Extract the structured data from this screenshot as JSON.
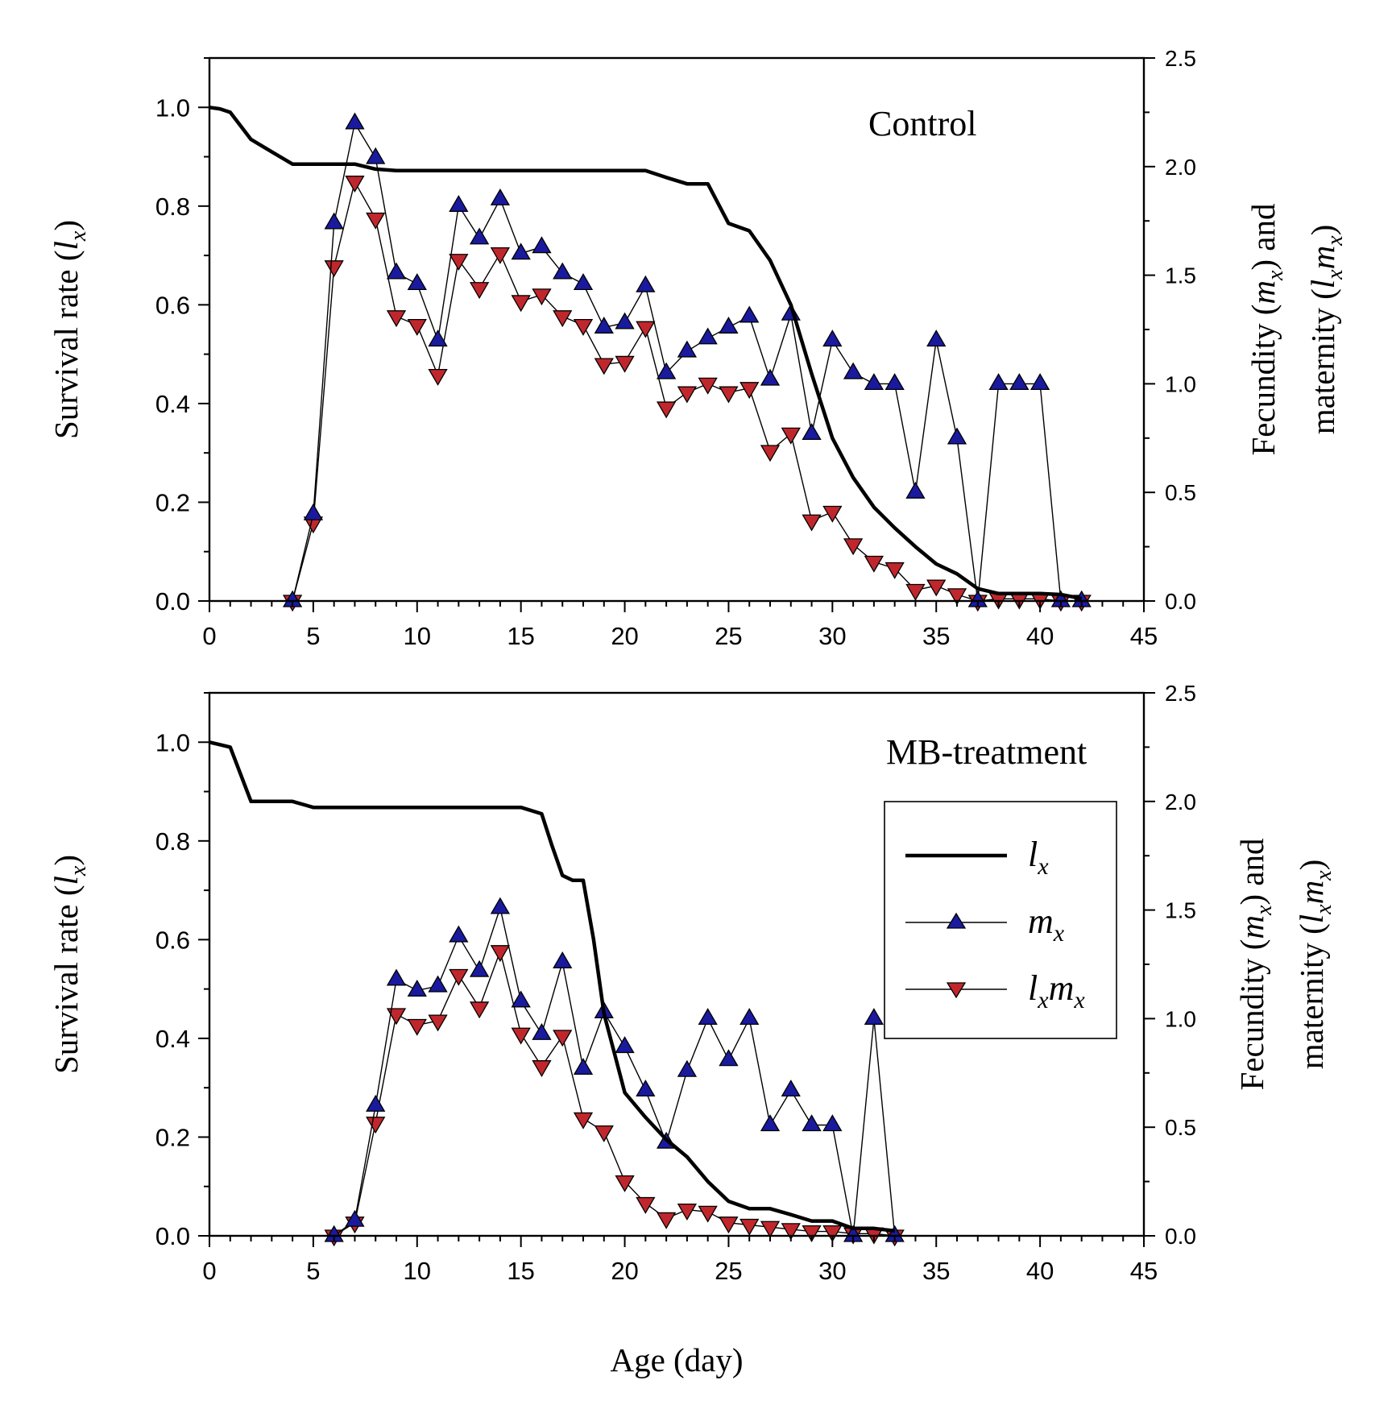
{
  "chart_data": [
    {
      "type": "line",
      "title": "Control",
      "xlabel": "Age (day)",
      "ylabel": "Survival rate (l_x)",
      "y2label": "Fecundity (m_x) and maternity (l_x m_x)",
      "xlim": [
        0,
        45
      ],
      "ylim": [
        0,
        1.1
      ],
      "y2lim": [
        0,
        2.5
      ],
      "xticks": [
        "0",
        "5",
        "10",
        "15",
        "20",
        "25",
        "30",
        "35",
        "40",
        "45"
      ],
      "yticks": [
        "0.0",
        "0.2",
        "0.4",
        "0.6",
        "0.8",
        "1.0"
      ],
      "y2ticks": [
        "0.0",
        "0.5",
        "1.0",
        "1.5",
        "2.0",
        "2.5"
      ],
      "series": [
        {
          "name": "l_x",
          "axis": "left",
          "x": [
            0,
            0.5,
            1,
            2,
            3,
            4,
            5,
            6,
            7,
            8,
            9,
            10,
            15,
            20,
            21,
            22,
            23,
            24,
            25,
            26,
            27,
            28,
            29,
            30,
            31,
            32,
            33,
            34,
            35,
            36,
            37,
            38,
            39,
            40,
            41,
            42
          ],
          "values": [
            1.0,
            0.997,
            0.99,
            0.935,
            0.91,
            0.885,
            0.885,
            0.885,
            0.885,
            0.875,
            0.872,
            0.872,
            0.872,
            0.872,
            0.872,
            0.858,
            0.845,
            0.845,
            0.765,
            0.75,
            0.69,
            0.6,
            0.46,
            0.33,
            0.25,
            0.19,
            0.148,
            0.11,
            0.075,
            0.055,
            0.025,
            0.015,
            0.015,
            0.015,
            0.013,
            0.005
          ]
        },
        {
          "name": "m_x",
          "axis": "right",
          "x": [
            4,
            5,
            6,
            7,
            8,
            9,
            10,
            11,
            12,
            13,
            14,
            15,
            16,
            17,
            18,
            19,
            20,
            21,
            22,
            23,
            24,
            25,
            26,
            27,
            28,
            29,
            30,
            31,
            32,
            33,
            34,
            35,
            36,
            37,
            38,
            39,
            40,
            41,
            42
          ],
          "values": [
            0.0,
            0.4,
            1.74,
            2.2,
            2.04,
            1.51,
            1.46,
            1.2,
            1.82,
            1.67,
            1.85,
            1.6,
            1.63,
            1.51,
            1.46,
            1.26,
            1.28,
            1.45,
            1.05,
            1.15,
            1.21,
            1.26,
            1.31,
            1.02,
            1.32,
            0.77,
            1.2,
            1.05,
            1.0,
            1.0,
            0.5,
            1.2,
            0.75,
            0.0,
            1.0,
            1.0,
            1.0,
            0.0,
            0.0
          ]
        },
        {
          "name": "l_x m_x",
          "axis": "right",
          "x": [
            4,
            5,
            6,
            7,
            8,
            9,
            10,
            11,
            12,
            13,
            14,
            15,
            16,
            17,
            18,
            19,
            20,
            21,
            22,
            23,
            24,
            25,
            26,
            27,
            28,
            29,
            30,
            31,
            32,
            33,
            34,
            35,
            36,
            37,
            38,
            39,
            40,
            41,
            42
          ],
          "values": [
            0.0,
            0.36,
            1.54,
            1.93,
            1.76,
            1.31,
            1.27,
            1.04,
            1.57,
            1.44,
            1.6,
            1.38,
            1.41,
            1.31,
            1.27,
            1.09,
            1.1,
            1.26,
            0.89,
            0.96,
            1.0,
            0.96,
            0.98,
            0.69,
            0.77,
            0.37,
            0.41,
            0.26,
            0.18,
            0.15,
            0.05,
            0.07,
            0.03,
            0.0,
            0.01,
            0.01,
            0.01,
            0.0,
            0.0
          ]
        }
      ]
    },
    {
      "type": "line",
      "title": "MB-treatment",
      "xlabel": "Age (day)",
      "ylabel": "Survival rate (l_x)",
      "y2label": "Fecundity (m_x) and maternity (l_x m_x)",
      "xlim": [
        0,
        45
      ],
      "ylim": [
        0,
        1.1
      ],
      "y2lim": [
        0,
        2.5
      ],
      "xticks": [
        "0",
        "5",
        "10",
        "15",
        "20",
        "25",
        "30",
        "35",
        "40",
        "45"
      ],
      "yticks": [
        "0.0",
        "0.2",
        "0.4",
        "0.6",
        "0.8",
        "1.0"
      ],
      "y2ticks": [
        "0.0",
        "0.5",
        "1.0",
        "1.5",
        "2.0",
        "2.5"
      ],
      "series": [
        {
          "name": "l_x",
          "axis": "left",
          "x": [
            0,
            0.5,
            1,
            2,
            3,
            4,
            5,
            6,
            10,
            15,
            16,
            16.5,
            17,
            17.5,
            18,
            18.5,
            19,
            20,
            21,
            22,
            23,
            24,
            25,
            26,
            27,
            28,
            29,
            30,
            31,
            32,
            33
          ],
          "values": [
            1.0,
            0.995,
            0.99,
            0.88,
            0.88,
            0.88,
            0.868,
            0.868,
            0.868,
            0.868,
            0.855,
            0.79,
            0.73,
            0.72,
            0.72,
            0.6,
            0.45,
            0.29,
            0.24,
            0.195,
            0.16,
            0.11,
            0.07,
            0.055,
            0.055,
            0.043,
            0.03,
            0.03,
            0.015,
            0.015,
            0.01
          ]
        },
        {
          "name": "m_x",
          "axis": "right",
          "x": [
            6,
            7,
            8,
            9,
            10,
            11,
            12,
            13,
            14,
            15,
            16,
            17,
            18,
            19,
            20,
            21,
            22,
            23,
            24,
            25,
            26,
            27,
            28,
            29,
            30,
            31,
            32,
            33
          ],
          "values": [
            0.0,
            0.07,
            0.6,
            1.18,
            1.13,
            1.15,
            1.38,
            1.22,
            1.51,
            1.08,
            0.93,
            1.26,
            0.77,
            1.03,
            0.87,
            0.67,
            0.43,
            0.76,
            1.0,
            0.81,
            1.0,
            0.51,
            0.67,
            0.51,
            0.51,
            0.0,
            1.0,
            0.0
          ]
        },
        {
          "name": "l_x m_x",
          "axis": "right",
          "x": [
            6,
            7,
            8,
            9,
            10,
            11,
            12,
            13,
            14,
            15,
            16,
            17,
            18,
            19,
            20,
            21,
            22,
            23,
            24,
            25,
            26,
            27,
            28,
            29,
            30,
            31,
            32,
            33
          ],
          "values": [
            0.0,
            0.06,
            0.52,
            1.02,
            0.97,
            0.99,
            1.2,
            1.05,
            1.31,
            0.93,
            0.78,
            0.92,
            0.54,
            0.48,
            0.25,
            0.15,
            0.08,
            0.12,
            0.11,
            0.06,
            0.05,
            0.04,
            0.03,
            0.02,
            0.02,
            0.01,
            0.01,
            0.0
          ]
        }
      ],
      "legend": {
        "placement": "center-right",
        "entries": [
          {
            "series": "l_x",
            "base": "l",
            "sub": "x"
          },
          {
            "series": "m_x",
            "base": "m",
            "sub": "x"
          },
          {
            "series": "l_x m_x",
            "base": "l",
            "sub": "x",
            "base2": "m",
            "sub2": "x"
          }
        ]
      }
    }
  ],
  "figure": {
    "shared_xlabel": "Age (day)",
    "left_ylabel": {
      "text": "Survival rate (",
      "var": "l",
      "sub": "x",
      "close": ")"
    },
    "right_ylabel_line1": {
      "text": "Fecundity (",
      "var": "m",
      "sub": "x",
      "close": ") and"
    },
    "right_ylabel_line2": {
      "text": "maternity (",
      "var1": "l",
      "sub1": "x",
      "var2": "m",
      "sub2": "x",
      "close": ")"
    }
  }
}
